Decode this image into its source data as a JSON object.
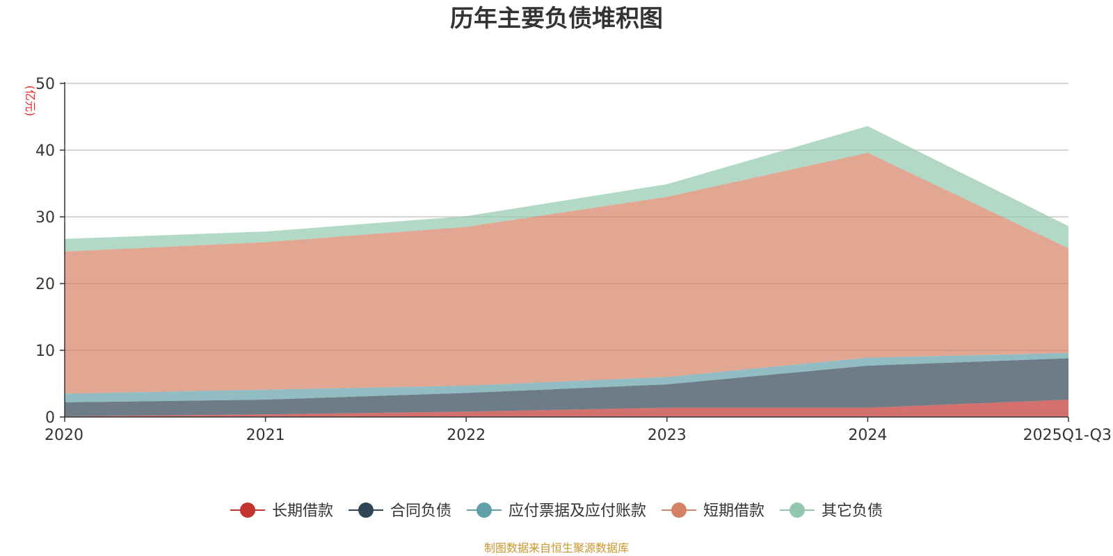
{
  "chart_data": {
    "type": "area",
    "stacked": true,
    "title": "历年主要负债堆积图",
    "ylabel": "(亿元)",
    "xlabel": "",
    "categories": [
      "2020",
      "2021",
      "2022",
      "2023",
      "2024",
      "2025Q1-Q3"
    ],
    "ylim": [
      0,
      50
    ],
    "yticks": [
      0,
      10,
      20,
      30,
      40,
      50
    ],
    "grid": true,
    "legend_position": "bottom-center",
    "series": [
      {
        "name": "长期借款",
        "color": "#c23531",
        "values": [
          0.1,
          0.4,
          0.8,
          1.4,
          1.4,
          2.6
        ]
      },
      {
        "name": "合同负债",
        "color": "#2f4554",
        "values": [
          2.1,
          2.2,
          2.8,
          3.5,
          6.3,
          6.2
        ]
      },
      {
        "name": "应付票据及应付账款",
        "color": "#61a0a8",
        "values": [
          1.3,
          1.5,
          1.1,
          1.1,
          1.2,
          0.8
        ]
      },
      {
        "name": "短期借款",
        "color": "#d48265",
        "values": [
          21.3,
          22.1,
          23.8,
          27.0,
          30.7,
          15.7
        ]
      },
      {
        "name": "其它负债",
        "color": "#91c7ae",
        "values": [
          1.9,
          1.6,
          1.6,
          1.9,
          4.0,
          3.3
        ]
      }
    ],
    "source": "制图数据来自恒生聚源数据库"
  }
}
